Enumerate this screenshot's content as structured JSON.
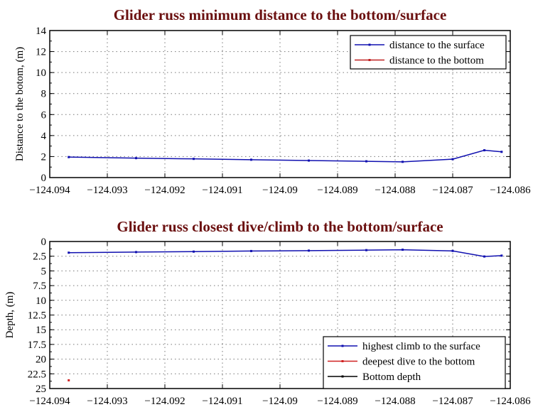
{
  "chart_data": [
    {
      "type": "line",
      "title": "Glider russ minimum distance to the bottom/surface",
      "xlabel": "",
      "ylabel": "Distance to the botom, (m)",
      "xlim": [
        -124.094,
        -124.086
      ],
      "ylim": [
        0,
        14
      ],
      "y_reversed": false,
      "grid": true,
      "legend_placement": "top-right",
      "xticks": [
        "-124.094",
        "-124.093",
        "-124.092",
        "-124.091",
        "-124.09",
        "-124.089",
        "-124.088",
        "-124.087",
        "-124.086"
      ],
      "yticks": [
        "0",
        "2",
        "4",
        "6",
        "8",
        "10",
        "12",
        "14"
      ],
      "series": [
        {
          "name": "distance to the surface",
          "color": "#1010b0",
          "x": [
            -124.09367,
            -124.0925,
            -124.0915,
            -124.0905,
            -124.0895,
            -124.0885,
            -124.08787,
            -124.087,
            -124.08645,
            -124.08615
          ],
          "y": [
            1.95,
            1.85,
            1.78,
            1.7,
            1.62,
            1.55,
            1.5,
            1.75,
            2.6,
            2.45
          ]
        },
        {
          "name": "distance to the bottom",
          "color": "#c02020",
          "x": [],
          "y": []
        }
      ]
    },
    {
      "type": "line",
      "title": "Glider russ closest dive/climb to the bottom/surface",
      "xlabel": "",
      "ylabel": "Depth, (m)",
      "xlim": [
        -124.094,
        -124.086
      ],
      "ylim": [
        0,
        25
      ],
      "y_reversed": true,
      "grid": true,
      "legend_placement": "bottom-right",
      "xticks": [
        "-124.094",
        "-124.093",
        "-124.092",
        "-124.091",
        "-124.09",
        "-124.089",
        "-124.088",
        "-124.087",
        "-124.086"
      ],
      "yticks": [
        "0",
        "2.5",
        "5",
        "7.5",
        "10",
        "12.5",
        "15",
        "17.5",
        "20",
        "22.5",
        "25"
      ],
      "series": [
        {
          "name": "highest climb to the surface",
          "color": "#1010b0",
          "x": [
            -124.09367,
            -124.0925,
            -124.0915,
            -124.0905,
            -124.0895,
            -124.0885,
            -124.08787,
            -124.087,
            -124.08645,
            -124.08615
          ],
          "y": [
            1.9,
            1.8,
            1.72,
            1.62,
            1.55,
            1.47,
            1.4,
            1.6,
            2.55,
            2.4
          ]
        },
        {
          "name": "deepest dive to the bottom",
          "color": "#d02020",
          "x": [
            -124.09367
          ],
          "y": [
            23.6
          ]
        },
        {
          "name": "Bottom depth",
          "color": "#000000",
          "x": [],
          "y": []
        }
      ]
    }
  ]
}
